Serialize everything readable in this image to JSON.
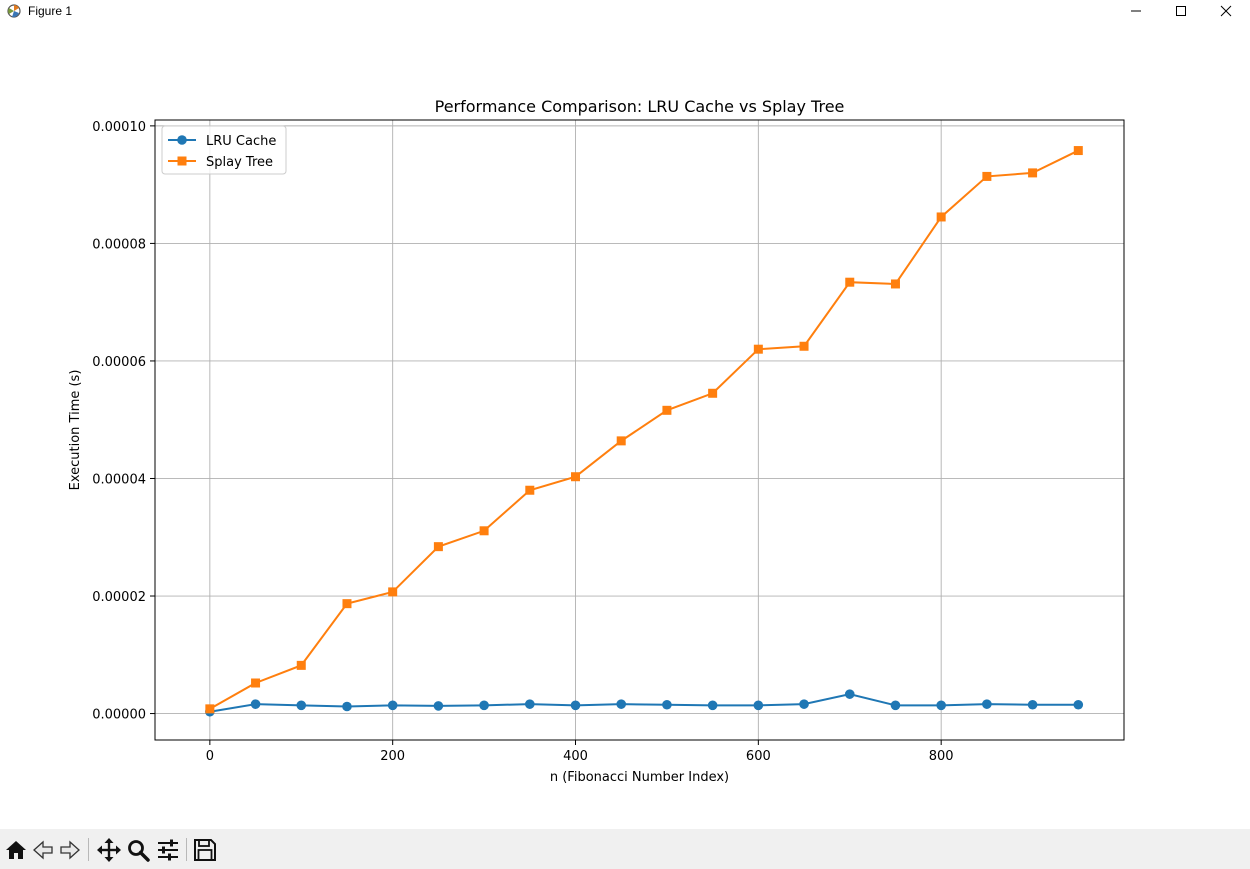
{
  "window": {
    "title": "Figure 1",
    "app_icon": "matplotlib-figure-icon",
    "controls": [
      "minimize-icon",
      "maximize-icon",
      "close-icon"
    ]
  },
  "toolbar": {
    "buttons": [
      {
        "name": "home",
        "icon": "home-icon",
        "tooltip": "Reset original view"
      },
      {
        "name": "back",
        "icon": "arrow-left-icon",
        "tooltip": "Back to previous view"
      },
      {
        "name": "forward",
        "icon": "arrow-right-icon",
        "tooltip": "Forward to next view"
      },
      {
        "name": "pan",
        "icon": "move-icon",
        "tooltip": "Pan axes"
      },
      {
        "name": "zoom",
        "icon": "magnifier-icon",
        "tooltip": "Zoom to rectangle"
      },
      {
        "name": "configure",
        "icon": "sliders-icon",
        "tooltip": "Configure subplots"
      },
      {
        "name": "save",
        "icon": "floppy-disk-icon",
        "tooltip": "Save the figure"
      }
    ]
  },
  "chart_data": {
    "type": "line",
    "title": "Performance Comparison: LRU Cache vs Splay Tree",
    "xlabel": "n (Fibonacci Number Index)",
    "ylabel": "Execution Time (s)",
    "xlim": [
      -60,
      1000
    ],
    "ylim": [
      -4.5e-06,
      0.000101
    ],
    "xticks": [
      0,
      200,
      400,
      600,
      800
    ],
    "xtick_labels": [
      "0",
      "200",
      "400",
      "600",
      "800"
    ],
    "yticks": [
      0,
      2e-05,
      4e-05,
      6e-05,
      8e-05,
      0.0001
    ],
    "ytick_labels": [
      "0.00000",
      "0.00002",
      "0.00004",
      "0.00006",
      "0.00008",
      "0.00010"
    ],
    "grid": true,
    "legend_position": "upper-left",
    "x": [
      0,
      50,
      100,
      150,
      200,
      250,
      300,
      350,
      400,
      450,
      500,
      550,
      600,
      650,
      700,
      750,
      800,
      850,
      900,
      950
    ],
    "series": [
      {
        "name": "LRU Cache",
        "color": "#1f77b4",
        "marker": "circle",
        "values": [
          3e-07,
          1.6e-06,
          1.4e-06,
          1.2e-06,
          1.4e-06,
          1.3e-06,
          1.4e-06,
          1.6e-06,
          1.4e-06,
          1.6e-06,
          1.5e-06,
          1.4e-06,
          1.4e-06,
          1.6e-06,
          3.3e-06,
          1.4e-06,
          1.4e-06,
          1.6e-06,
          1.5e-06,
          1.5e-06
        ]
      },
      {
        "name": "Splay Tree",
        "color": "#ff7f0e",
        "marker": "square",
        "values": [
          8e-07,
          5.2e-06,
          8.2e-06,
          1.87e-05,
          2.07e-05,
          2.84e-05,
          3.11e-05,
          3.8e-05,
          4.03e-05,
          4.64e-05,
          5.16e-05,
          5.45e-05,
          6.2e-05,
          6.25e-05,
          7.34e-05,
          7.31e-05,
          8.45e-05,
          9.14e-05,
          9.2e-05,
          9.58e-05
        ]
      }
    ]
  }
}
